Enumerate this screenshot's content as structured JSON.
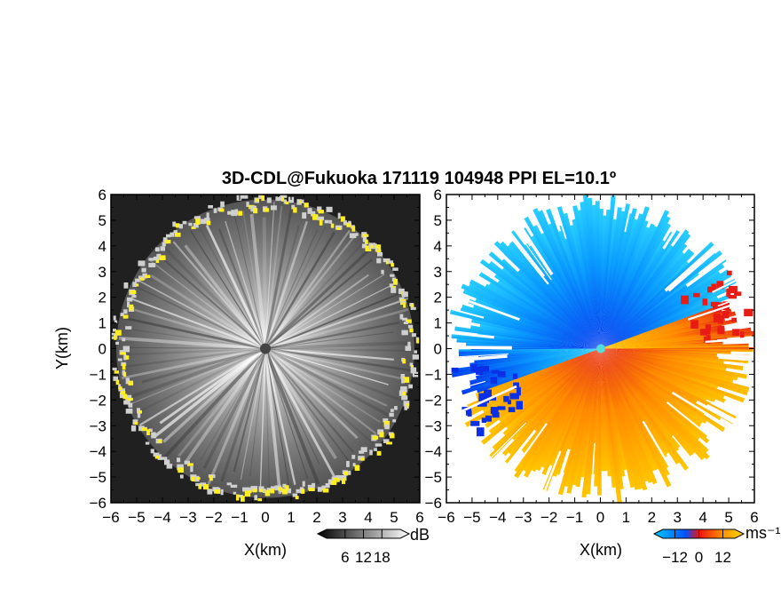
{
  "chart_data": [
    {
      "type": "heatmap",
      "panel": "reflectivity",
      "title": "3D-CDL@Fukuoka 171119 104948 PPI EL=10.1º",
      "xlabel": "X(km)",
      "ylabel": "Y(km)",
      "xlim": [
        -6,
        6
      ],
      "ylim": [
        -6,
        6
      ],
      "x_ticks": [
        "−6",
        "−5",
        "−4",
        "−3",
        "−2",
        "−1",
        "0",
        "1",
        "2",
        "3",
        "4",
        "5",
        "6"
      ],
      "y_ticks": [
        "6",
        "5",
        "4",
        "3",
        "2",
        "1",
        "0",
        "−1",
        "−2",
        "−3",
        "−4",
        "−5",
        "−6"
      ],
      "colorbar": {
        "unit": "dB",
        "tick_labels": [
          "6",
          "12",
          "18"
        ],
        "ticks": [
          6,
          12,
          18
        ],
        "range": [
          0,
          24
        ],
        "colors": [
          "#000000",
          "#ffffff"
        ]
      },
      "coverage_radius_km": 5.8,
      "edge_color": "#ffee22",
      "background": "#1a1a1a"
    },
    {
      "type": "heatmap",
      "panel": "doppler-velocity",
      "xlabel": "X(km)",
      "xlim": [
        -6,
        6
      ],
      "ylim": [
        -6,
        6
      ],
      "x_ticks": [
        "−6",
        "−5",
        "−4",
        "−3",
        "−2",
        "−1",
        "0",
        "1",
        "2",
        "3",
        "4",
        "5",
        "6"
      ],
      "y_ticks": [
        "6",
        "5",
        "4",
        "3",
        "2",
        "1",
        "0",
        "−1",
        "−2",
        "−3",
        "−4",
        "−5",
        "−6"
      ],
      "colorbar": {
        "unit": "ms⁻¹",
        "tick_labels": [
          "−12",
          "0",
          "12"
        ],
        "ticks": [
          -12,
          0,
          12
        ],
        "range": [
          -18,
          18
        ],
        "colors": [
          "#00ccff",
          "#0050ff",
          "#ee1111",
          "#ff8800",
          "#ffdd00"
        ]
      },
      "coverage_radius_km": 5.8,
      "zero_line_azimuth_deg": 20,
      "background": "#ffffff"
    }
  ]
}
